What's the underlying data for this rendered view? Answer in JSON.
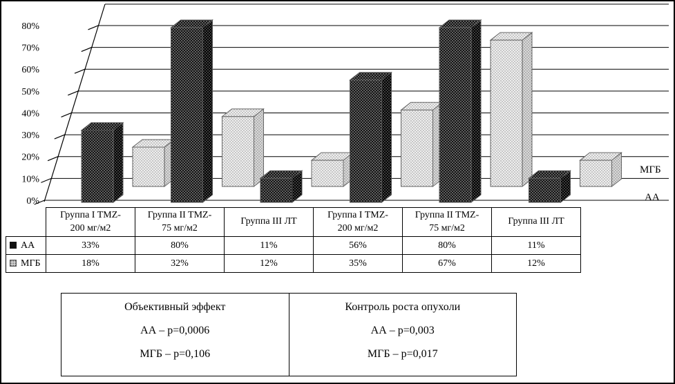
{
  "chart_data": {
    "type": "bar",
    "variant": "3d-clustered-column",
    "categories": [
      "Группа I TMZ-200 мг/м2",
      "Группа II TMZ-75 мг/м2",
      "Группа III ЛТ",
      "Группа I TMZ-200 мг/м2",
      "Группа II TMZ-75 мг/м2",
      "Группа III ЛТ"
    ],
    "series": [
      {
        "name": "АА",
        "values": [
          33,
          80,
          11,
          56,
          80,
          11
        ],
        "fill": "#141414",
        "dot": "#d0d0d0"
      },
      {
        "name": "МГБ",
        "values": [
          18,
          32,
          12,
          35,
          67,
          12
        ],
        "fill": "#efefef",
        "dot": "#8a8a8a"
      }
    ],
    "ylim": [
      0,
      80
    ],
    "yticks": [
      "0%",
      "10%",
      "20%",
      "30%",
      "40%",
      "50%",
      "60%",
      "70%",
      "80%"
    ],
    "legend": [
      "МГБ",
      "АА"
    ],
    "legend_position": "right",
    "grid": true
  },
  "table": {
    "columns": [
      "Группа I TMZ-\n200 мг/м2",
      "Группа II TMZ-\n75 мг/м2",
      "Группа III ЛТ",
      "Группа I TMZ-\n200 мг/м2",
      "Группа II TMZ-\n75 мг/м2",
      "Группа III ЛТ"
    ],
    "rows": [
      {
        "label": "АА",
        "values": [
          "33%",
          "80%",
          "11%",
          "56%",
          "80%",
          "11%"
        ]
      },
      {
        "label": "МГБ",
        "values": [
          "18%",
          "32%",
          "12%",
          "35%",
          "67%",
          "12%"
        ]
      }
    ]
  },
  "stats_box": {
    "left": {
      "title": "Объективный эффект",
      "lines": [
        "АА – р=0,0006",
        "МГБ – р=0,106"
      ]
    },
    "right": {
      "title": "Контроль роста опухоли",
      "lines": [
        "АА – р=0,003",
        "МГБ – р=0,017"
      ]
    }
  }
}
